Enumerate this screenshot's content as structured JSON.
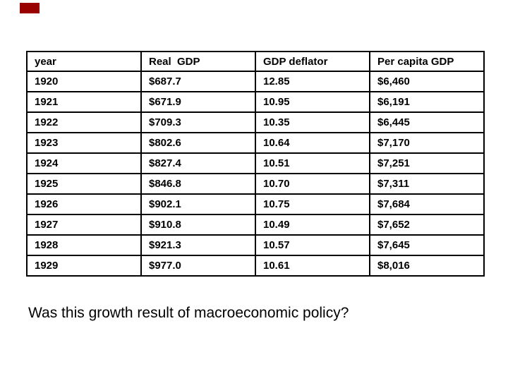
{
  "slide": {
    "background": "#ffffff",
    "accent_mark": {
      "color": "#990000"
    }
  },
  "table": {
    "border_color": "#000000",
    "headers": [
      "year",
      "Real  GDP",
      "GDP deflator",
      "Per capita GDP"
    ],
    "rows": [
      [
        "1920",
        "$687.7",
        "12.85",
        "$6,460"
      ],
      [
        "1921",
        "$671.9",
        "10.95",
        "$6,191"
      ],
      [
        "1922",
        "$709.3",
        "10.35",
        "$6,445"
      ],
      [
        "1923",
        "$802.6",
        "10.64",
        "$7,170"
      ],
      [
        "1924",
        "$827.4",
        "10.51",
        "$7,251"
      ],
      [
        "1925",
        "$846.8",
        "10.70",
        "$7,311"
      ],
      [
        "1926",
        "$902.1",
        "10.75",
        "$7,684"
      ],
      [
        "1927",
        "$910.8",
        "10.49",
        "$7,652"
      ],
      [
        "1928",
        "$921.3",
        "10.57",
        "$7,645"
      ],
      [
        "1929",
        "$977.0",
        "10.61",
        "$8,016"
      ]
    ]
  },
  "caption": {
    "text": "Was this growth result of macroeconomic policy?"
  }
}
